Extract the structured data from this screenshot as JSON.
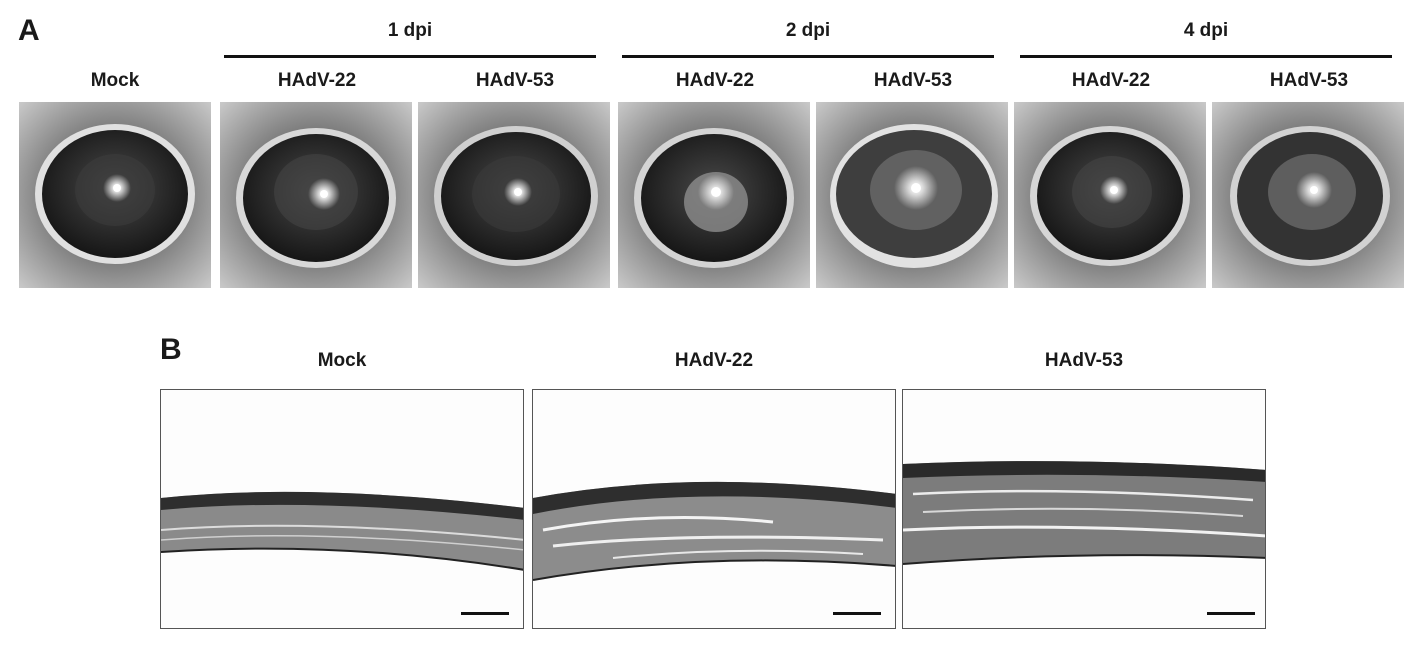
{
  "panel_a": {
    "letter": "A",
    "groups": [
      {
        "label": "1 dpi"
      },
      {
        "label": "2 dpi"
      },
      {
        "label": "4 dpi"
      }
    ],
    "column_labels": [
      "Mock",
      "HAdV-22",
      "HAdV-53",
      "HAdV-22",
      "HAdV-53",
      "HAdV-22",
      "HAdV-53"
    ],
    "images": [
      {
        "condition": "Mock"
      },
      {
        "condition": "HAdV-22",
        "time": "1 dpi"
      },
      {
        "condition": "HAdV-53",
        "time": "1 dpi"
      },
      {
        "condition": "HAdV-22",
        "time": "2 dpi"
      },
      {
        "condition": "HAdV-53",
        "time": "2 dpi"
      },
      {
        "condition": "HAdV-22",
        "time": "4 dpi"
      },
      {
        "condition": "HAdV-53",
        "time": "4 dpi"
      }
    ]
  },
  "panel_b": {
    "letter": "B",
    "column_labels": [
      "Mock",
      "HAdV-22",
      "HAdV-53"
    ]
  }
}
